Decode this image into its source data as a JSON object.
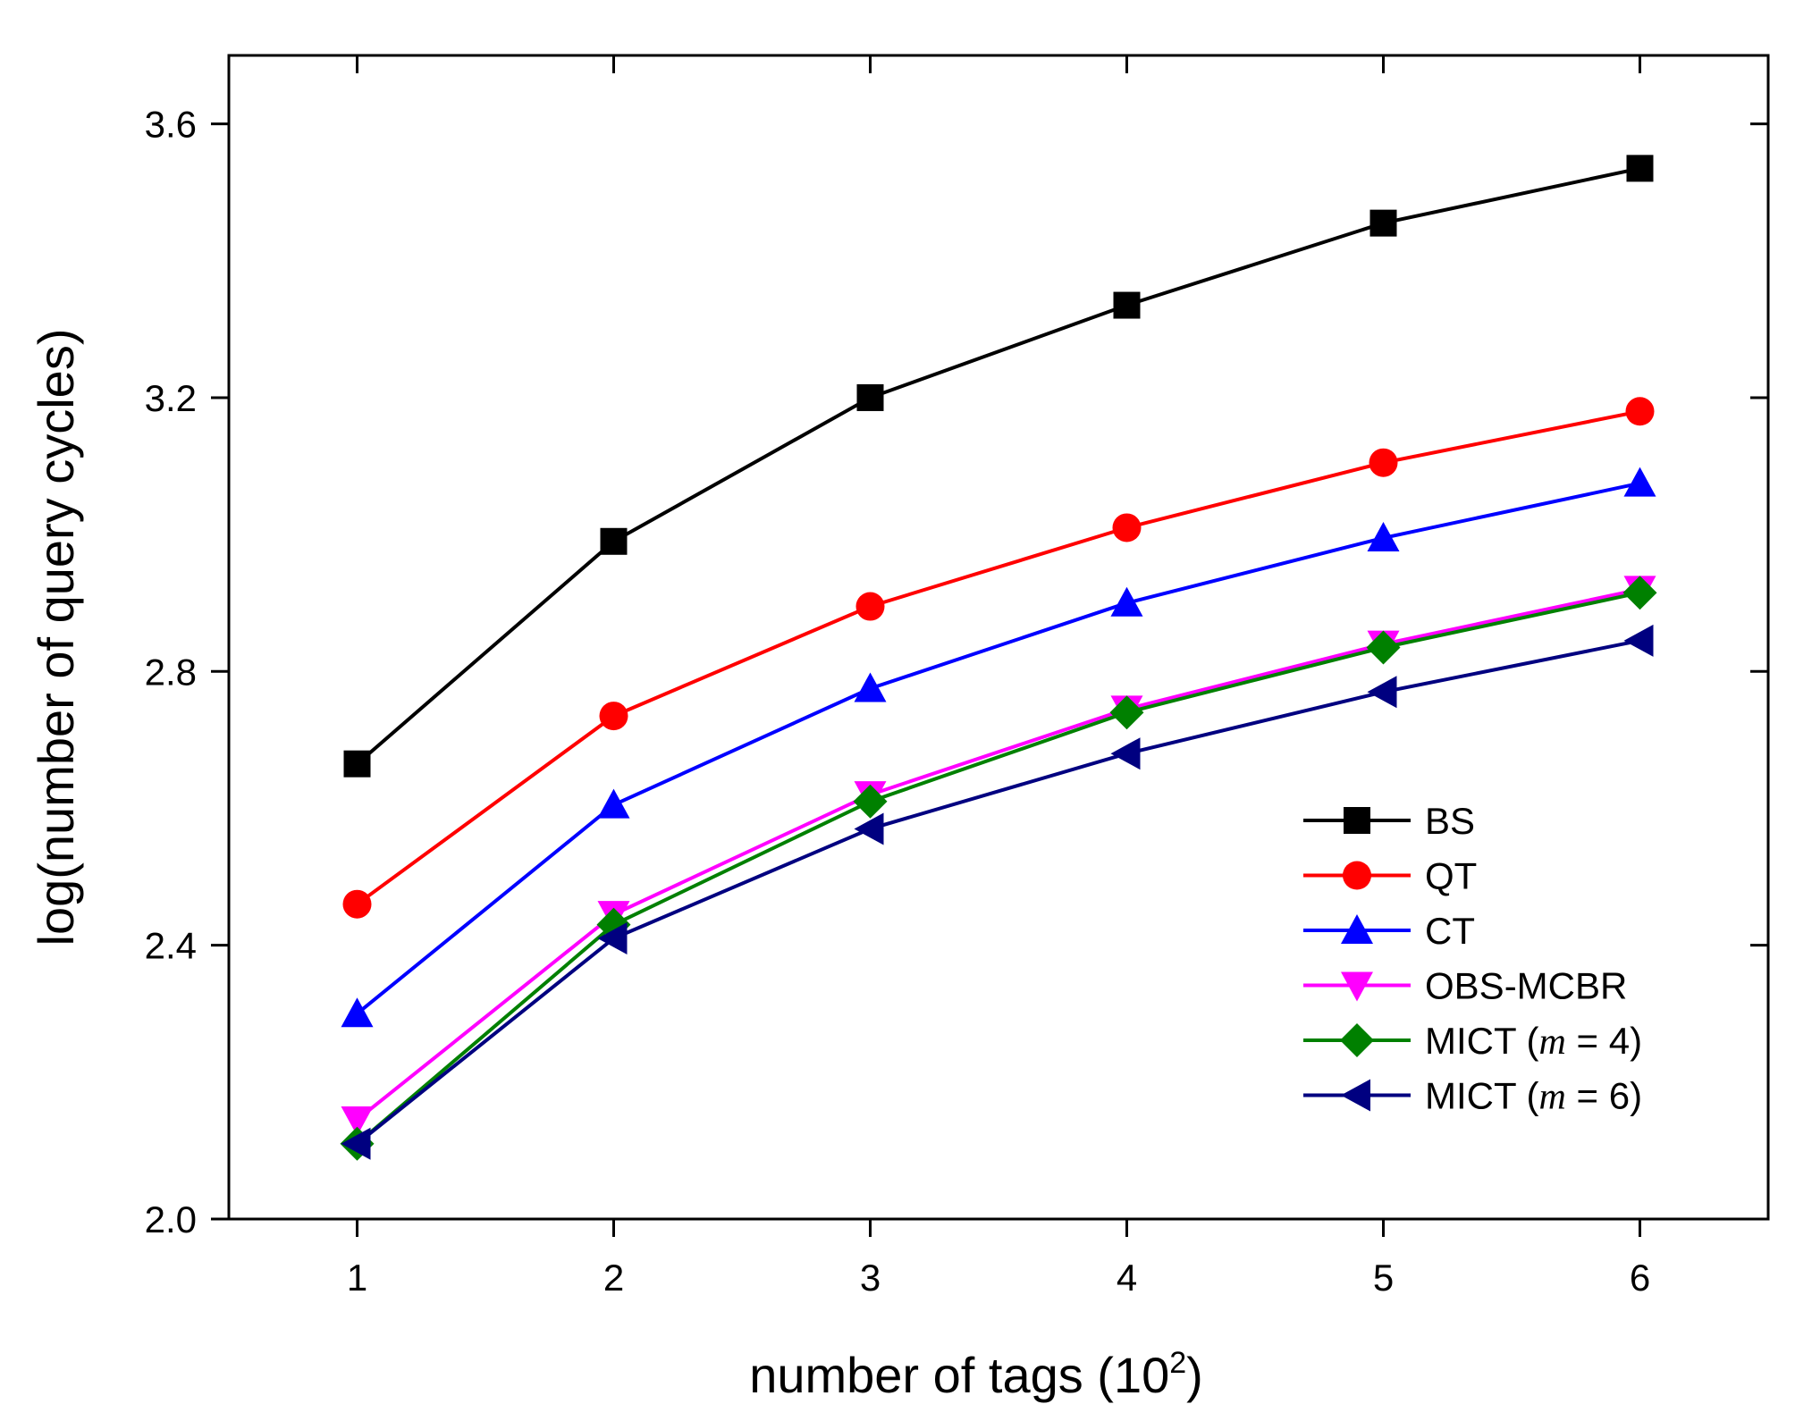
{
  "chart_data": {
    "type": "line",
    "title": "",
    "xlabel": "number of tags (10",
    "xlabel_sup": "2",
    "xlabel_close": ")",
    "ylabel": "log(number of query cycles)",
    "x": [
      1,
      2,
      3,
      4,
      5,
      6
    ],
    "xlim": [
      0.5,
      6.5
    ],
    "ylim": [
      2.0,
      3.7
    ],
    "xticks": [
      1,
      2,
      3,
      4,
      5,
      6
    ],
    "yticks": [
      2.0,
      2.4,
      2.8,
      3.2,
      3.6
    ],
    "ytick_labels": [
      "2.0",
      "2.4",
      "2.8",
      "3.2",
      "3.6"
    ],
    "xtick_labels": [
      "1",
      "2",
      "3",
      "4",
      "5",
      "6"
    ],
    "grid": false,
    "legend_position": "bottom-right",
    "series": [
      {
        "name": "BS",
        "label_parts": [
          "BS"
        ],
        "color": "#000000",
        "marker": "square",
        "values": [
          2.665,
          2.99,
          3.2,
          3.335,
          3.455,
          3.535
        ]
      },
      {
        "name": "QT",
        "label_parts": [
          "QT"
        ],
        "color": "#ff0000",
        "marker": "circle",
        "values": [
          2.46,
          2.735,
          2.895,
          3.01,
          3.105,
          3.18
        ]
      },
      {
        "name": "CT",
        "label_parts": [
          "CT"
        ],
        "color": "#0000ff",
        "marker": "triangle-up",
        "values": [
          2.3,
          2.605,
          2.775,
          2.9,
          2.995,
          3.075
        ]
      },
      {
        "name": "OBS-MCBR",
        "label_parts": [
          "OBS-MCBR"
        ],
        "color": "#ff00ff",
        "marker": "triangle-down",
        "values": [
          2.145,
          2.445,
          2.62,
          2.745,
          2.84,
          2.92
        ]
      },
      {
        "name": "MICT (m = 4)",
        "label_parts": [
          "MICT (",
          "m",
          " = 4)"
        ],
        "color": "#008000",
        "marker": "diamond",
        "values": [
          2.11,
          2.43,
          2.61,
          2.74,
          2.835,
          2.915
        ]
      },
      {
        "name": "MICT (m = 6)",
        "label_parts": [
          "MICT (",
          "m",
          " = 6)"
        ],
        "color": "#000080",
        "marker": "triangle-left",
        "values": [
          2.11,
          2.41,
          2.57,
          2.68,
          2.77,
          2.845
        ]
      }
    ]
  }
}
